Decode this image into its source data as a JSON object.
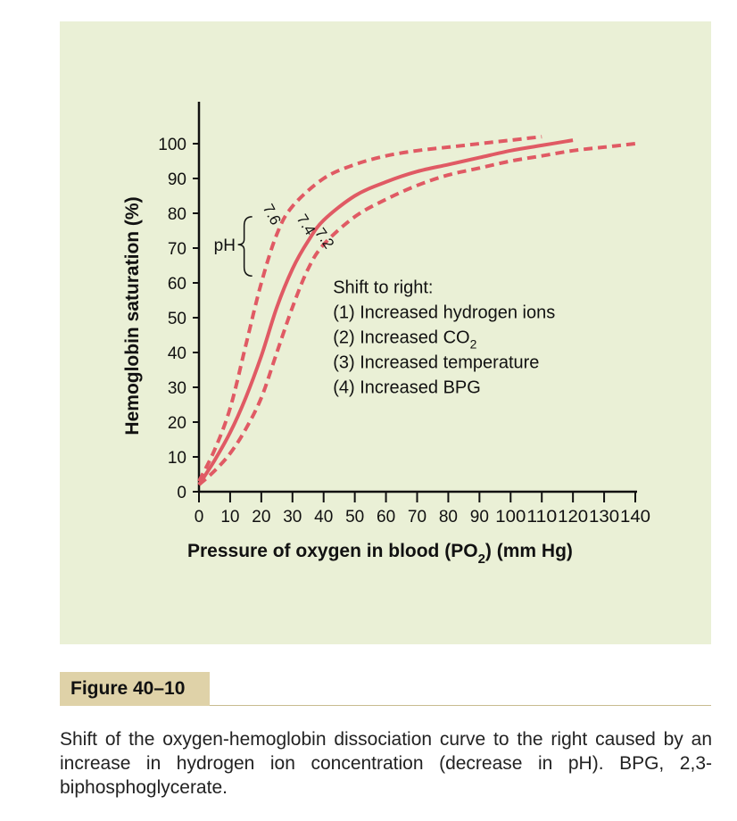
{
  "chart_data": {
    "type": "line",
    "xlabel_main": "Pressure of oxygen in blood (PO",
    "xlabel_sub": "2",
    "xlabel_end": ") (mm Hg)",
    "ylabel": "Hemoglobin saturation (%)",
    "xlim": [
      0,
      140
    ],
    "ylim": [
      0,
      100
    ],
    "x_ticks": [
      0,
      10,
      20,
      30,
      40,
      50,
      60,
      70,
      80,
      90,
      100,
      110,
      120,
      130,
      140
    ],
    "y_ticks": [
      0,
      10,
      20,
      30,
      40,
      50,
      60,
      70,
      80,
      90,
      100
    ],
    "x_tick_labels": [
      "0",
      "10",
      "20",
      "30",
      "40",
      "50",
      "60",
      "70",
      "80",
      "90",
      "100",
      "110",
      "120",
      "130",
      "140"
    ],
    "y_tick_labels": [
      "0",
      "10",
      "20",
      "30",
      "40",
      "50",
      "60",
      "70",
      "80",
      "90",
      "100"
    ],
    "grid": false,
    "series": [
      {
        "name": "7.6",
        "style": "dashed",
        "points": [
          [
            0,
            3
          ],
          [
            5,
            12
          ],
          [
            10,
            24
          ],
          [
            15,
            42
          ],
          [
            20,
            60
          ],
          [
            25,
            74
          ],
          [
            30,
            82
          ],
          [
            40,
            90
          ],
          [
            50,
            94
          ],
          [
            60,
            96.5
          ],
          [
            70,
            98
          ],
          [
            80,
            99
          ],
          [
            90,
            100
          ],
          [
            100,
            101
          ],
          [
            110,
            102
          ]
        ]
      },
      {
        "name": "7.4",
        "style": "solid",
        "points": [
          [
            0,
            2
          ],
          [
            5,
            9
          ],
          [
            10,
            17
          ],
          [
            15,
            27
          ],
          [
            20,
            39
          ],
          [
            25,
            53
          ],
          [
            30,
            64
          ],
          [
            35,
            72
          ],
          [
            40,
            78
          ],
          [
            50,
            85
          ],
          [
            60,
            89
          ],
          [
            70,
            92
          ],
          [
            80,
            94
          ],
          [
            90,
            96
          ],
          [
            100,
            98
          ],
          [
            110,
            99.5
          ],
          [
            120,
            101
          ]
        ]
      },
      {
        "name": "7.2",
        "style": "dashed",
        "points": [
          [
            0,
            2
          ],
          [
            5,
            6
          ],
          [
            10,
            11
          ],
          [
            15,
            18
          ],
          [
            20,
            27
          ],
          [
            25,
            40
          ],
          [
            30,
            53
          ],
          [
            35,
            64
          ],
          [
            40,
            71
          ],
          [
            50,
            79
          ],
          [
            60,
            84
          ],
          [
            70,
            88
          ],
          [
            80,
            91
          ],
          [
            90,
            93
          ],
          [
            100,
            95
          ],
          [
            110,
            96.5
          ],
          [
            120,
            98
          ],
          [
            130,
            99
          ],
          [
            140,
            100
          ]
        ]
      }
    ],
    "ph_label": "pH",
    "annotation": {
      "heading": "Shift to right:",
      "lines": [
        {
          "text": "(1) Increased hydrogen ions",
          "sub": ""
        },
        {
          "text": "(2) Increased CO",
          "sub": "2"
        },
        {
          "text": "(3) Increased temperature",
          "sub": ""
        },
        {
          "text": "(4) Increased BPG",
          "sub": ""
        }
      ]
    },
    "colors": {
      "curve": "#e05a64",
      "axis": "#111111",
      "background": "#eaf0d6"
    }
  },
  "figure": {
    "label": "Figure 40–10",
    "caption": "Shift of the oxygen-hemoglobin dissociation curve to the right caused by an increase in hydrogen ion concentration (decrease in pH). BPG, 2,3-biphosphoglycerate."
  }
}
